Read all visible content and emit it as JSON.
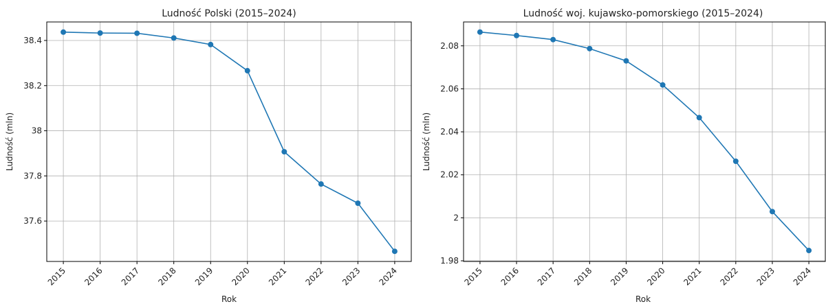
{
  "chart_data": [
    {
      "type": "line",
      "title": "Ludność Polski (2015–2024)",
      "x_label": "Rok",
      "y_label": "Ludność (mln)",
      "x": [
        2015,
        2016,
        2017,
        2018,
        2019,
        2020,
        2021,
        2022,
        2023,
        2024
      ],
      "series": [
        {
          "name": "Ludność",
          "color": "#1f77b4",
          "values": [
            38.437,
            38.433,
            38.432,
            38.411,
            38.382,
            38.266,
            37.907,
            37.764,
            37.679,
            37.466
          ]
        }
      ],
      "xlim": [
        2014.55,
        2024.45
      ],
      "xticks": [
        2015,
        2016,
        2017,
        2018,
        2019,
        2020,
        2021,
        2022,
        2023,
        2024
      ],
      "ylim": [
        37.421,
        38.482
      ],
      "yticks": [
        37.6,
        37.8,
        38.0,
        38.2,
        38.4
      ],
      "grid": true
    },
    {
      "type": "line",
      "title": "Ludność woj. kujawsko-pomorskiego (2015–2024)",
      "x_label": "Rok",
      "y_label": "Ludność (mln)",
      "x": [
        2015,
        2016,
        2017,
        2018,
        2019,
        2020,
        2021,
        2022,
        2023,
        2024
      ],
      "series": [
        {
          "name": "Ludność",
          "color": "#1f77b4",
          "values": [
            2.0864,
            2.0848,
            2.0829,
            2.0787,
            2.073,
            2.0618,
            2.0466,
            2.0263,
            2.0029,
            1.9848
          ]
        }
      ],
      "xlim": [
        2014.55,
        2024.45
      ],
      "xticks": [
        2015,
        2016,
        2017,
        2018,
        2019,
        2020,
        2021,
        2022,
        2023,
        2024
      ],
      "ylim": [
        1.9797,
        2.0911
      ],
      "yticks": [
        1.98,
        2.0,
        2.02,
        2.04,
        2.06,
        2.08
      ],
      "grid": true
    }
  ]
}
